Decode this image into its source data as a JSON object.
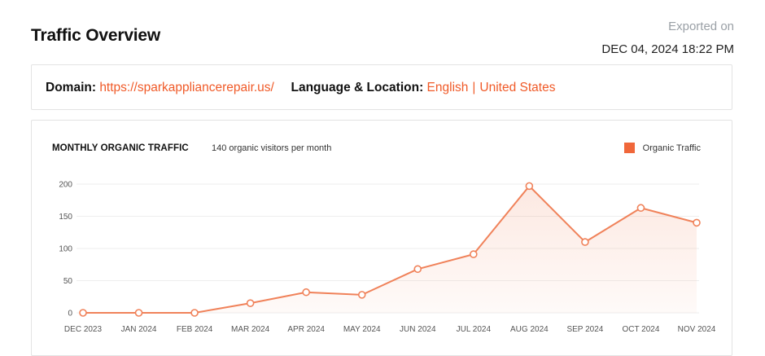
{
  "header": {
    "title": "Traffic Overview",
    "export_label": "Exported on",
    "export_date": "DEC 04, 2024 18:22 PM"
  },
  "info": {
    "domain_label": "Domain:",
    "domain_value": "https://sparkappliancerepair.us/",
    "lang_loc_label": "Language & Location:",
    "language": "English",
    "separator": "|",
    "location": "United States"
  },
  "colors": {
    "accent": "#f05a28",
    "series": "#f0825a"
  },
  "chart_data": {
    "type": "line",
    "title": "MONTHLY ORGANIC TRAFFIC",
    "subtitle": "140 organic visitors per month",
    "categories": [
      "DEC 2023",
      "JAN 2024",
      "FEB 2024",
      "MAR 2024",
      "APR 2024",
      "MAY 2024",
      "JUN 2024",
      "JUL 2024",
      "AUG 2024",
      "SEP 2024",
      "OCT 2024",
      "NOV 2024"
    ],
    "series": [
      {
        "name": "Organic Traffic",
        "values": [
          0,
          0,
          0,
          15,
          32,
          28,
          68,
          91,
          197,
          110,
          163,
          140
        ]
      }
    ],
    "yticks": [
      0,
      50,
      100,
      150,
      200
    ],
    "ylim": [
      0,
      200
    ],
    "xlabel": "",
    "ylabel": "",
    "grid": true,
    "legend_position": "top-right",
    "area_fill": true
  }
}
